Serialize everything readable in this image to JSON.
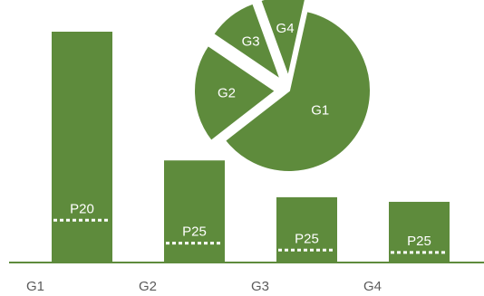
{
  "chart_data": [
    {
      "type": "bar",
      "categories": [
        "G1",
        "G2",
        "G3",
        "G4"
      ],
      "values": [
        100,
        44,
        28,
        26
      ],
      "ylim": [
        0,
        100
      ],
      "bar_color": "#5e8b3c",
      "markers": [
        {
          "category": "G1",
          "label": "P20",
          "value": 18
        },
        {
          "category": "G2",
          "label": "P25",
          "value": 8
        },
        {
          "category": "G3",
          "label": "P25",
          "value": 5
        },
        {
          "category": "G4",
          "label": "P25",
          "value": 4
        }
      ]
    },
    {
      "type": "pie",
      "slices": [
        {
          "label": "G1",
          "value": 61,
          "exploded": false
        },
        {
          "label": "G2",
          "value": 20,
          "exploded": true
        },
        {
          "label": "G3",
          "value": 10,
          "exploded": true
        },
        {
          "label": "G4",
          "value": 9,
          "exploded": true
        }
      ],
      "color": "#5e8b3c"
    }
  ]
}
